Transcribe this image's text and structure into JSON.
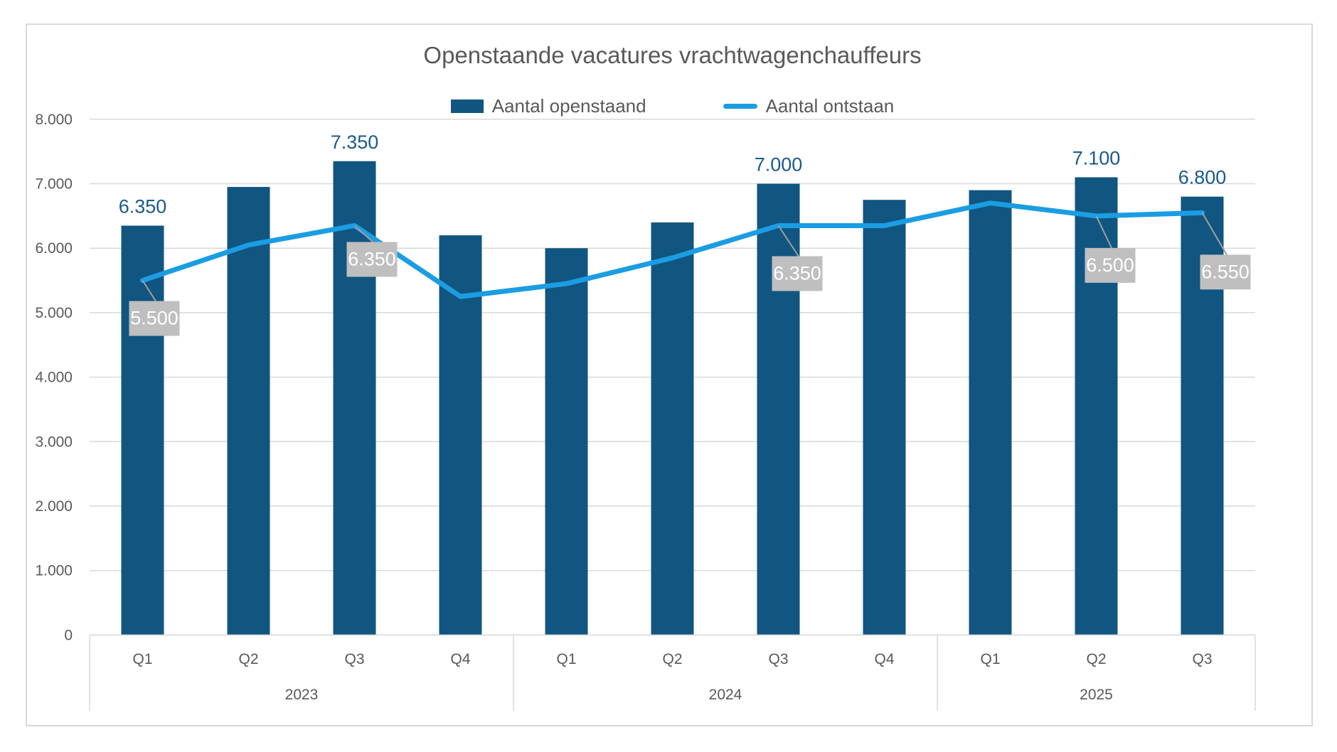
{
  "chart_data": {
    "type": "bar+line",
    "title": "Openstaande vacatures vrachtwagenchauffeurs",
    "categories": [
      "Q1",
      "Q2",
      "Q3",
      "Q4",
      "Q1",
      "Q2",
      "Q3",
      "Q4",
      "Q1",
      "Q2",
      "Q3"
    ],
    "year_groups": [
      {
        "label": "2023",
        "span": 4
      },
      {
        "label": "2024",
        "span": 4
      },
      {
        "label": "2025",
        "span": 3
      }
    ],
    "series": [
      {
        "name": "Aantal openstaand",
        "type": "bar",
        "color": "#115581",
        "values": [
          6350,
          6950,
          7350,
          6200,
          6000,
          6400,
          7000,
          6750,
          6900,
          7100,
          6800
        ],
        "data_labels": [
          "6.350",
          null,
          "7.350",
          null,
          null,
          null,
          "7.000",
          null,
          null,
          "7.100",
          "6.800"
        ]
      },
      {
        "name": "Aantal ontstaan",
        "type": "line",
        "color": "#1B9DE2",
        "values": [
          5500,
          6050,
          6350,
          5250,
          5450,
          5850,
          6350,
          6350,
          6700,
          6500,
          6550
        ],
        "data_labels": [
          "5.500",
          null,
          "6.350",
          null,
          null,
          null,
          "6.350",
          null,
          null,
          "6.500",
          "6.550"
        ],
        "data_label_style": "gray-box"
      }
    ],
    "ylim": [
      0,
      8000
    ],
    "yticks": [
      "0",
      "1.000",
      "2.000",
      "3.000",
      "4.000",
      "5.000",
      "6.000",
      "7.000",
      "8.000"
    ],
    "grid": true,
    "legend_position": "top-center"
  },
  "colors": {
    "bar": "#115581",
    "line": "#1B9DE2",
    "grid": "#D9D9D9",
    "axis_line": "#D5D5D5",
    "axis_text": "#595959",
    "title_text": "#595959",
    "bar_label": "#195A8C",
    "data_label_bg": "#BFBFBF",
    "data_label_text": "#FFFFFF",
    "callout": "#9E9E9E",
    "chart_border": "#D9D9D9"
  }
}
